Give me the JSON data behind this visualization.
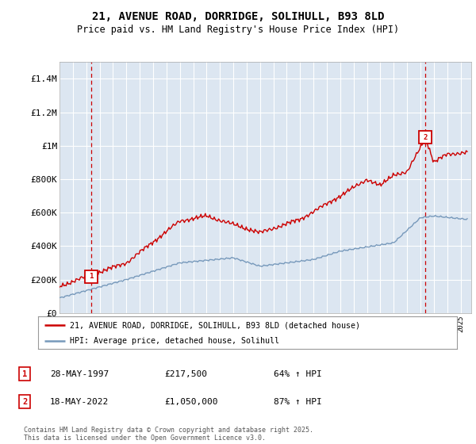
{
  "title_line1": "21, AVENUE ROAD, DORRIDGE, SOLIHULL, B93 8LD",
  "title_line2": "Price paid vs. HM Land Registry's House Price Index (HPI)",
  "legend_label_red": "21, AVENUE ROAD, DORRIDGE, SOLIHULL, B93 8LD (detached house)",
  "legend_label_blue": "HPI: Average price, detached house, Solihull",
  "footer": "Contains HM Land Registry data © Crown copyright and database right 2025.\nThis data is licensed under the Open Government Licence v3.0.",
  "transaction1_date": "28-MAY-1997",
  "transaction1_price": "£217,500",
  "transaction1_hpi": "64% ↑ HPI",
  "transaction2_date": "18-MAY-2022",
  "transaction2_price": "£1,050,000",
  "transaction2_hpi": "87% ↑ HPI",
  "ylim": [
    0,
    1500000
  ],
  "yticks": [
    0,
    200000,
    400000,
    600000,
    800000,
    1000000,
    1200000,
    1400000
  ],
  "ytick_labels": [
    "£0",
    "£200K",
    "£400K",
    "£600K",
    "£800K",
    "£1M",
    "£1.2M",
    "£1.4M"
  ],
  "bg_color": "#dce6f1",
  "grid_color": "#ffffff",
  "red_color": "#cc0000",
  "blue_color": "#7799bb",
  "marker1_x": 1997.38,
  "marker1_y": 217500,
  "marker2_x": 2022.38,
  "marker2_y": 1050000,
  "xlim_left": 1995.0,
  "xlim_right": 2025.8
}
